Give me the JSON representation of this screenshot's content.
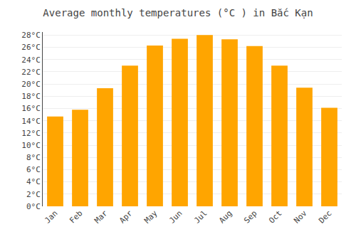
{
  "chart_data": {
    "type": "bar",
    "title": "Average monthly temperatures (°C ) in Bắc Kạn",
    "categories": [
      "Jan",
      "Feb",
      "Mar",
      "Apr",
      "May",
      "Jun",
      "Jul",
      "Aug",
      "Sep",
      "Oct",
      "Nov",
      "Dec"
    ],
    "values": [
      14.7,
      15.8,
      19.3,
      23.0,
      26.3,
      27.4,
      28.0,
      27.3,
      26.2,
      23.0,
      19.4,
      16.1
    ],
    "color": "#FFA500",
    "ylim": [
      0,
      28.5
    ],
    "yticks": [
      {
        "value": 0,
        "label": "0°C"
      },
      {
        "value": 2,
        "label": "2°C"
      },
      {
        "value": 4,
        "label": "4°C"
      },
      {
        "value": 6,
        "label": "6°C"
      },
      {
        "value": 8,
        "label": "8°C"
      },
      {
        "value": 10,
        "label": "10°C"
      },
      {
        "value": 12,
        "label": "12°C"
      },
      {
        "value": 14,
        "label": "14°C"
      },
      {
        "value": 16,
        "label": "16°C"
      },
      {
        "value": 18,
        "label": "18°C"
      },
      {
        "value": 20,
        "label": "20°C"
      },
      {
        "value": 22,
        "label": "22°C"
      },
      {
        "value": 24,
        "label": "24°C"
      },
      {
        "value": 26,
        "label": "26°C"
      },
      {
        "value": 28,
        "label": "28°C"
      }
    ],
    "grid": true
  }
}
